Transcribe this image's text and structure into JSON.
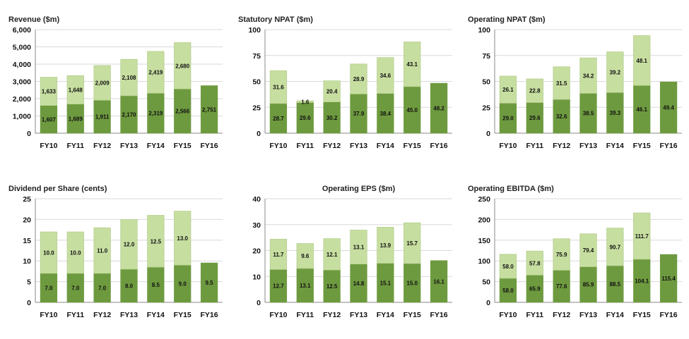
{
  "colors": {
    "lower": "#6e9a3f",
    "upper": "#c7dea1",
    "border": "#b5cf8c"
  },
  "chart_data": [
    {
      "type": "bar",
      "title": "Revenue ($m)",
      "categories": [
        "FY10",
        "FY11",
        "FY12",
        "FY13",
        "FY14",
        "FY15",
        "FY16"
      ],
      "ylim": [
        0,
        6000
      ],
      "yticks": [
        0,
        1000,
        2000,
        3000,
        4000,
        5000,
        6000
      ],
      "ytick_labels": [
        "0",
        "1,000",
        "2,000",
        "3,000",
        "4,000",
        "5,000",
        "6,000"
      ],
      "title_align": "left",
      "series": [
        {
          "values": [
            1607,
            1689,
            1911,
            2170,
            2319,
            2566,
            2751
          ],
          "labels": [
            "1,607",
            "1,689",
            "1,911",
            "2,170",
            "2,319",
            "2,566",
            "2,751"
          ]
        },
        {
          "values": [
            1633,
            1648,
            2009,
            2108,
            2419,
            2680,
            null
          ],
          "labels": [
            "1,633",
            "1,648",
            "2,009",
            "2,108",
            "2,419",
            "2,680",
            ""
          ]
        }
      ]
    },
    {
      "type": "bar",
      "title": "Statutory NPAT ($m)",
      "categories": [
        "FY10",
        "FY11",
        "FY12",
        "FY13",
        "FY14",
        "FY15",
        "FY16"
      ],
      "ylim": [
        0,
        100
      ],
      "yticks": [
        0,
        25,
        50,
        75,
        100
      ],
      "ytick_labels": [
        "0",
        "25",
        "50",
        "75",
        "100"
      ],
      "title_align": "left",
      "series": [
        {
          "values": [
            28.7,
            29.6,
            30.2,
            37.9,
            38.4,
            45.0,
            48.2
          ],
          "labels": [
            "28.7",
            "29.6",
            "30.2",
            "37.9",
            "38.4",
            "45.0",
            "48.2"
          ]
        },
        {
          "values": [
            31.6,
            1.6,
            20.4,
            28.9,
            34.6,
            43.1,
            null
          ],
          "labels": [
            "31.6",
            "1.6",
            "20.4",
            "28.9",
            "34.6",
            "43.1",
            ""
          ]
        }
      ]
    },
    {
      "type": "bar",
      "title": "Operating NPAT ($m)",
      "categories": [
        "FY10",
        "FY11",
        "FY12",
        "FY13",
        "FY14",
        "FY15",
        "FY16"
      ],
      "ylim": [
        0,
        100
      ],
      "yticks": [
        0,
        25,
        50,
        75,
        100
      ],
      "ytick_labels": [
        "0",
        "25",
        "50",
        "75",
        "100"
      ],
      "title_align": "left",
      "series": [
        {
          "values": [
            29.0,
            29.6,
            32.6,
            38.5,
            39.3,
            46.1,
            49.4
          ],
          "labels": [
            "29.0",
            "29.6",
            "32.6",
            "38.5",
            "39.3",
            "46.1",
            "49.4"
          ]
        },
        {
          "values": [
            26.1,
            22.8,
            31.5,
            34.2,
            39.2,
            48.1,
            null
          ],
          "labels": [
            "26.1",
            "22.8",
            "31.5",
            "34.2",
            "39.2",
            "48.1",
            ""
          ]
        }
      ]
    },
    {
      "type": "bar",
      "title": "Dividend per Share (cents)",
      "categories": [
        "FY10",
        "FY11",
        "FY12",
        "FY13",
        "FY14",
        "FY15",
        "FY16"
      ],
      "ylim": [
        0,
        25
      ],
      "yticks": [
        0,
        5,
        10,
        15,
        20,
        25
      ],
      "ytick_labels": [
        "0",
        "5",
        "10",
        "15",
        "20",
        "25"
      ],
      "title_align": "left",
      "series": [
        {
          "values": [
            7.0,
            7.0,
            7.0,
            8.0,
            8.5,
            9.0,
            9.5
          ],
          "labels": [
            "7.0",
            "7.0",
            "7.0",
            "8.0",
            "8.5",
            "9.0",
            "9.5"
          ]
        },
        {
          "values": [
            10.0,
            10.0,
            11.0,
            12.0,
            12.5,
            13.0,
            null
          ],
          "labels": [
            "10.0",
            "10.0",
            "11.0",
            "12.0",
            "12.5",
            "13.0",
            ""
          ]
        }
      ]
    },
    {
      "type": "bar",
      "title": "Operating EPS ($m)",
      "categories": [
        "FY10",
        "FY11",
        "FY12",
        "FY13",
        "FY14",
        "FY15",
        "FY16"
      ],
      "ylim": [
        0,
        40
      ],
      "yticks": [
        0,
        10,
        20,
        30,
        40
      ],
      "ytick_labels": [
        "0",
        "10",
        "20",
        "30",
        "40"
      ],
      "title_align": "center",
      "series": [
        {
          "values": [
            12.7,
            13.1,
            12.5,
            14.8,
            15.1,
            15.0,
            16.1
          ],
          "labels": [
            "12.7",
            "13.1",
            "12.5",
            "14.8",
            "15.1",
            "15.0",
            "16.1"
          ]
        },
        {
          "values": [
            11.7,
            9.6,
            12.1,
            13.1,
            13.9,
            15.7,
            null
          ],
          "labels": [
            "11.7",
            "9.6",
            "12.1",
            "13.1",
            "13.9",
            "15.7",
            ""
          ]
        }
      ]
    },
    {
      "type": "bar",
      "title": "Operating EBITDA ($m)",
      "categories": [
        "FY10",
        "FY11",
        "FY12",
        "FY13",
        "FY14",
        "FY15",
        "FY16"
      ],
      "ylim": [
        0,
        250
      ],
      "yticks": [
        0,
        50,
        100,
        150,
        200,
        250
      ],
      "ytick_labels": [
        "0",
        "50",
        "100",
        "150",
        "200",
        "250"
      ],
      "title_align": "left",
      "series": [
        {
          "values": [
            58.0,
            65.9,
            77.6,
            85.9,
            88.5,
            104.1,
            115.4
          ],
          "labels": [
            "58.0",
            "65.9",
            "77.6",
            "85.9",
            "88.5",
            "104.1",
            "115.4"
          ]
        },
        {
          "values": [
            58.0,
            57.8,
            75.9,
            79.4,
            90.7,
            111.7,
            null
          ],
          "labels": [
            "58.0",
            "57.8",
            "75.9",
            "79.4",
            "90.7",
            "111.7",
            ""
          ]
        }
      ]
    }
  ]
}
